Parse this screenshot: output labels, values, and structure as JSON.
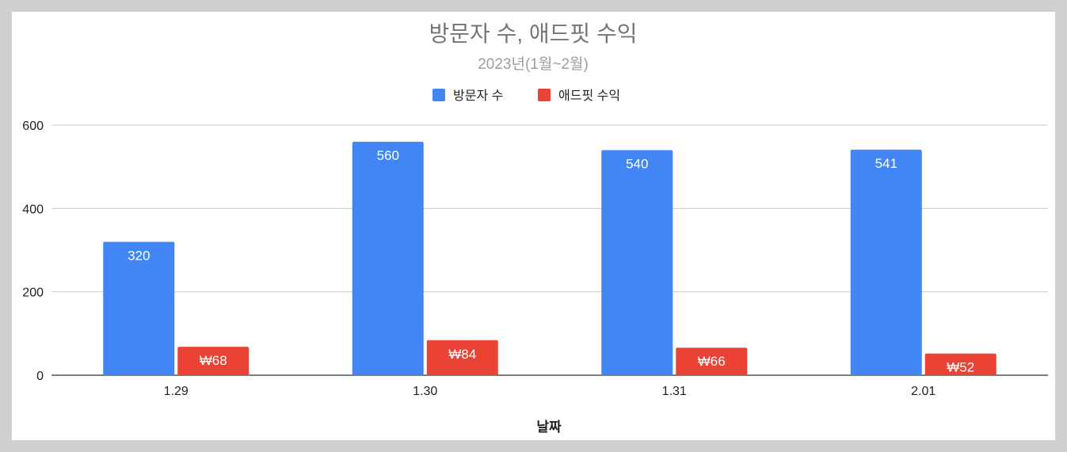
{
  "chart_data": {
    "type": "bar",
    "title": "방문자 수, 애드핏 수익",
    "subtitle": "2023년(1월~2월)",
    "xlabel": "날짜",
    "ylabel": "",
    "categories": [
      "1.29",
      "1.30",
      "1.31",
      "2.01"
    ],
    "series": [
      {
        "name": "방문자 수",
        "color": "#4285f4",
        "values": [
          320,
          560,
          540,
          541
        ],
        "labels": [
          "320",
          "560",
          "540",
          "541"
        ]
      },
      {
        "name": "애드핏 수익",
        "color": "#ea4335",
        "values": [
          68,
          84,
          66,
          52
        ],
        "labels": [
          "₩68",
          "₩84",
          "₩66",
          "₩52"
        ]
      }
    ],
    "ylim": [
      0,
      600
    ],
    "yticks": [
      "0",
      "200",
      "400",
      "600"
    ],
    "grid": true,
    "legend_position": "top-center",
    "gridline_color": "#cccccc",
    "axis_color": "#333333"
  }
}
